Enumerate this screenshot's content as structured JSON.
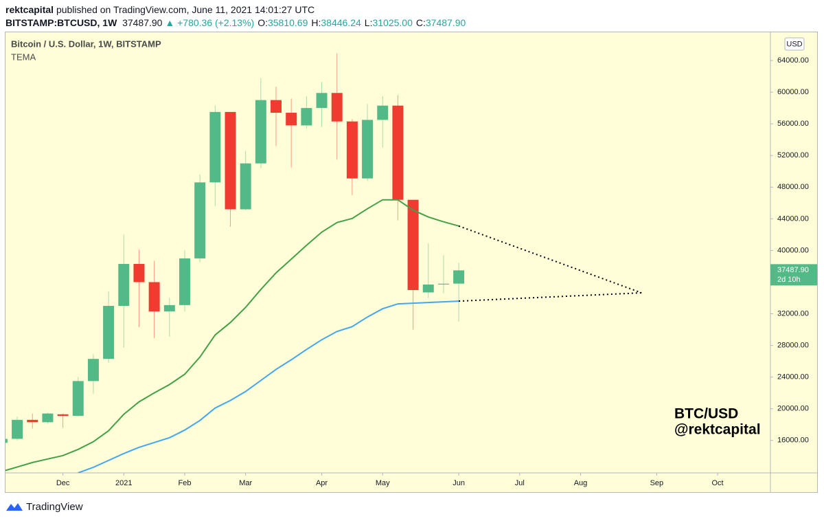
{
  "header": {
    "publisher": "rektcapital",
    "published": "published on TradingView.com, June 11, 2021 14:01:27 UTC",
    "symbol": "BITSTAMP:BTCUSD, 1W",
    "last": "37487.90",
    "change": "▲ +780.36 (+2.13%)",
    "ohlc": [
      {
        "label": "O:",
        "value": "35810.69"
      },
      {
        "label": "H:",
        "value": "38446.24"
      },
      {
        "label": "L:",
        "value": "31025.00"
      },
      {
        "label": "C:",
        "value": "37487.90"
      }
    ]
  },
  "chart_data": {
    "type": "candlestick",
    "title": "Bitcoin / U.S. Dollar, 1W, BITSTAMP",
    "indicator": "TEMA",
    "currency": "USD",
    "watermark": [
      "BTC/USD",
      "@rektcapital"
    ],
    "up_color": "#53b987",
    "down_color": "#f03b30",
    "candles": [
      {
        "open": 15700,
        "high": 16300,
        "low": 15500,
        "close": 16200
      },
      {
        "open": 16200,
        "high": 19000,
        "low": 16000,
        "close": 18600
      },
      {
        "open": 18600,
        "high": 19400,
        "low": 17500,
        "close": 18300
      },
      {
        "open": 18300,
        "high": 19500,
        "low": 18100,
        "close": 19400
      },
      {
        "open": 19300,
        "high": 19400,
        "low": 17600,
        "close": 19100
      },
      {
        "open": 19100,
        "high": 24000,
        "low": 19000,
        "close": 23500
      },
      {
        "open": 23500,
        "high": 26900,
        "low": 21900,
        "close": 26300
      },
      {
        "open": 26300,
        "high": 34800,
        "low": 25800,
        "close": 33000
      },
      {
        "open": 33000,
        "high": 42000,
        "low": 27700,
        "close": 38300
      },
      {
        "open": 38300,
        "high": 40100,
        "low": 30300,
        "close": 36000
      },
      {
        "open": 36000,
        "high": 38700,
        "low": 28900,
        "close": 32300
      },
      {
        "open": 32300,
        "high": 34000,
        "low": 29100,
        "close": 33100
      },
      {
        "open": 33100,
        "high": 40000,
        "low": 32300,
        "close": 39000
      },
      {
        "open": 39000,
        "high": 49600,
        "low": 38500,
        "close": 48600
      },
      {
        "open": 48600,
        "high": 58300,
        "low": 45600,
        "close": 57500
      },
      {
        "open": 57500,
        "high": 57500,
        "low": 43000,
        "close": 45200
      },
      {
        "open": 45200,
        "high": 52600,
        "low": 45100,
        "close": 51000
      },
      {
        "open": 51000,
        "high": 61800,
        "low": 50400,
        "close": 59000
      },
      {
        "open": 59000,
        "high": 60700,
        "low": 53200,
        "close": 57400
      },
      {
        "open": 57400,
        "high": 59200,
        "low": 50500,
        "close": 55800
      },
      {
        "open": 55800,
        "high": 59500,
        "low": 55400,
        "close": 58000
      },
      {
        "open": 58000,
        "high": 61300,
        "low": 55600,
        "close": 59900
      },
      {
        "open": 59900,
        "high": 64900,
        "low": 51500,
        "close": 56300
      },
      {
        "open": 56300,
        "high": 56600,
        "low": 47000,
        "close": 49100
      },
      {
        "open": 49100,
        "high": 58500,
        "low": 48800,
        "close": 56500
      },
      {
        "open": 56500,
        "high": 59500,
        "low": 53000,
        "close": 58300
      },
      {
        "open": 58300,
        "high": 59600,
        "low": 43800,
        "close": 46400
      },
      {
        "open": 46400,
        "high": 46400,
        "low": 30000,
        "close": 35000
      },
      {
        "open": 34700,
        "high": 40900,
        "low": 34000,
        "close": 35700
      },
      {
        "open": 35700,
        "high": 39400,
        "low": 34600,
        "close": 35800
      },
      {
        "open": 35810.69,
        "high": 38446.24,
        "low": 31025.0,
        "close": 37487.9
      }
    ],
    "lines": [
      {
        "color": "#43a047",
        "values": [
          12080,
          12650,
          13215,
          13650,
          14090,
          14870,
          15830,
          17220,
          19310,
          20880,
          22010,
          23060,
          24365,
          26540,
          29330,
          30900,
          32815,
          35080,
          37170,
          38910,
          40655,
          42310,
          43530,
          44050,
          45270,
          46400,
          46400,
          45100,
          44230,
          43620,
          43090
        ]
      },
      {
        "color": "#42a5f5",
        "values": [
          null,
          null,
          null,
          null,
          null,
          11910,
          12605,
          13476,
          14350,
          15130,
          15740,
          16350,
          17310,
          18530,
          20100,
          21055,
          22190,
          23580,
          24975,
          26195,
          27500,
          28720,
          29765,
          30375,
          31595,
          32640,
          33250,
          33340,
          33430,
          33510,
          33600
        ]
      }
    ],
    "trendlines": [
      {
        "x": [
          30,
          42
        ],
        "y": [
          43090,
          34650
        ]
      },
      {
        "x": [
          30,
          42
        ],
        "y": [
          33600,
          34650
        ]
      }
    ],
    "last_price": {
      "value": 37487.9,
      "label": "37487.90",
      "countdown": "2d 10h"
    },
    "xlim": [
      0.23,
      50.47
    ],
    "xticks": [
      {
        "value": 4,
        "label": "Dec"
      },
      {
        "value": 8,
        "label": "2021"
      },
      {
        "value": 12,
        "label": "Feb"
      },
      {
        "value": 16,
        "label": "Mar"
      },
      {
        "value": 21,
        "label": "Apr"
      },
      {
        "value": 25,
        "label": "May"
      },
      {
        "value": 30,
        "label": "Jun"
      },
      {
        "value": 34,
        "label": "Jul"
      },
      {
        "value": 38,
        "label": "Aug"
      },
      {
        "value": 43,
        "label": "Sep"
      },
      {
        "value": 47,
        "label": "Oct"
      }
    ],
    "ylim": [
      11900,
      67650
    ],
    "yticks": [
      {
        "value": 16000,
        "label": "16000.00"
      },
      {
        "value": 20000,
        "label": "20000.00"
      },
      {
        "value": 24000,
        "label": "24000.00"
      },
      {
        "value": 28000,
        "label": "28000.00"
      },
      {
        "value": 32000,
        "label": "32000.00"
      },
      {
        "value": 36000,
        "label": "36000.00"
      },
      {
        "value": 40000,
        "label": "40000.00"
      },
      {
        "value": 44000,
        "label": "44000.00"
      },
      {
        "value": 48000,
        "label": "48000.00"
      },
      {
        "value": 52000,
        "label": "52000.00"
      },
      {
        "value": 56000,
        "label": "56000.00"
      },
      {
        "value": 60000,
        "label": "60000.00"
      },
      {
        "value": 64000,
        "label": "64000.00"
      }
    ]
  },
  "footer": {
    "brand": "TradingView"
  }
}
